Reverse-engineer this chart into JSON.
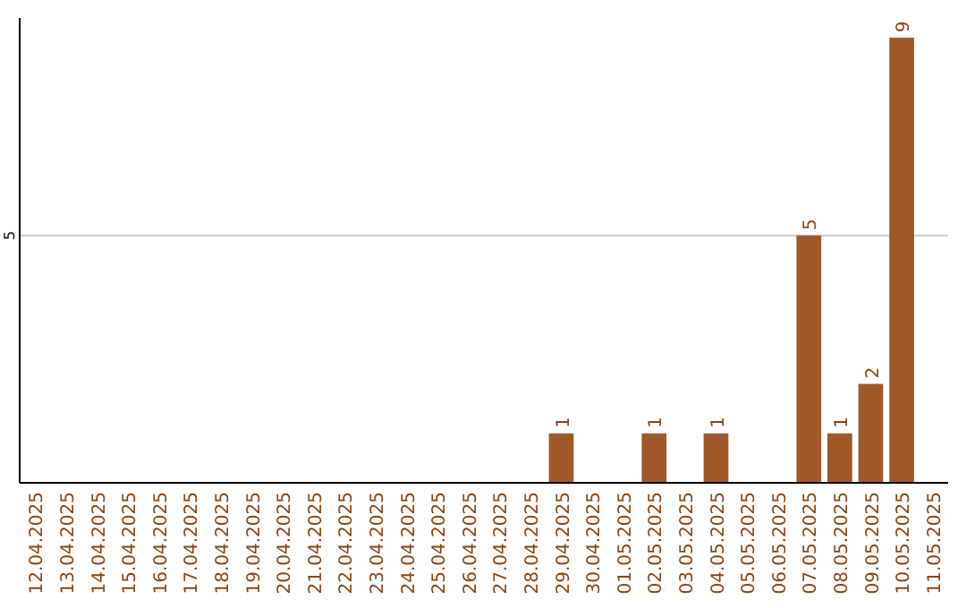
{
  "chart_data": {
    "type": "bar",
    "categories": [
      "12.04.2025",
      "13.04.2025",
      "14.04.2025",
      "15.04.2025",
      "16.04.2025",
      "17.04.2025",
      "18.04.2025",
      "19.04.2025",
      "20.04.2025",
      "21.04.2025",
      "22.04.2025",
      "23.04.2025",
      "24.04.2025",
      "25.04.2025",
      "26.04.2025",
      "27.04.2025",
      "28.04.2025",
      "29.04.2025",
      "30.04.2025",
      "01.05.2025",
      "02.05.2025",
      "03.05.2025",
      "04.05.2025",
      "05.05.2025",
      "06.05.2025",
      "07.05.2025",
      "08.05.2025",
      "09.05.2025",
      "10.05.2025",
      "11.05.2025"
    ],
    "values": [
      null,
      null,
      null,
      null,
      null,
      null,
      null,
      null,
      null,
      null,
      null,
      null,
      null,
      null,
      null,
      null,
      null,
      1,
      null,
      null,
      1,
      null,
      1,
      null,
      null,
      5,
      1,
      2,
      9,
      null
    ],
    "color": "#a0572a",
    "ylim": [
      0,
      9.4
    ],
    "yticks": [
      5
    ],
    "grid": "y",
    "data_labels": true
  }
}
